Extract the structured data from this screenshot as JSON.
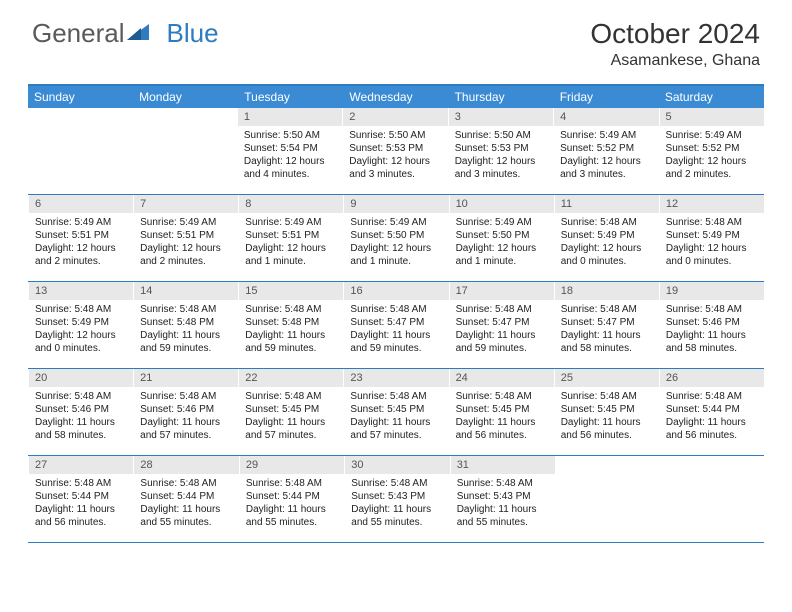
{
  "logo": {
    "part1": "General",
    "part2": "Blue"
  },
  "title": "October 2024",
  "location": "Asamankese, Ghana",
  "colors": {
    "accent": "#2e7bc0",
    "header_bg": "#3b8bd4",
    "daynum_bg": "#e8e8e8",
    "text": "#222222"
  },
  "day_headers": [
    "Sunday",
    "Monday",
    "Tuesday",
    "Wednesday",
    "Thursday",
    "Friday",
    "Saturday"
  ],
  "weeks": [
    [
      null,
      null,
      {
        "n": "1",
        "sr": "5:50 AM",
        "ss": "5:54 PM",
        "dl": "12 hours and 4 minutes."
      },
      {
        "n": "2",
        "sr": "5:50 AM",
        "ss": "5:53 PM",
        "dl": "12 hours and 3 minutes."
      },
      {
        "n": "3",
        "sr": "5:50 AM",
        "ss": "5:53 PM",
        "dl": "12 hours and 3 minutes."
      },
      {
        "n": "4",
        "sr": "5:49 AM",
        "ss": "5:52 PM",
        "dl": "12 hours and 3 minutes."
      },
      {
        "n": "5",
        "sr": "5:49 AM",
        "ss": "5:52 PM",
        "dl": "12 hours and 2 minutes."
      }
    ],
    [
      {
        "n": "6",
        "sr": "5:49 AM",
        "ss": "5:51 PM",
        "dl": "12 hours and 2 minutes."
      },
      {
        "n": "7",
        "sr": "5:49 AM",
        "ss": "5:51 PM",
        "dl": "12 hours and 2 minutes."
      },
      {
        "n": "8",
        "sr": "5:49 AM",
        "ss": "5:51 PM",
        "dl": "12 hours and 1 minute."
      },
      {
        "n": "9",
        "sr": "5:49 AM",
        "ss": "5:50 PM",
        "dl": "12 hours and 1 minute."
      },
      {
        "n": "10",
        "sr": "5:49 AM",
        "ss": "5:50 PM",
        "dl": "12 hours and 1 minute."
      },
      {
        "n": "11",
        "sr": "5:48 AM",
        "ss": "5:49 PM",
        "dl": "12 hours and 0 minutes."
      },
      {
        "n": "12",
        "sr": "5:48 AM",
        "ss": "5:49 PM",
        "dl": "12 hours and 0 minutes."
      }
    ],
    [
      {
        "n": "13",
        "sr": "5:48 AM",
        "ss": "5:49 PM",
        "dl": "12 hours and 0 minutes."
      },
      {
        "n": "14",
        "sr": "5:48 AM",
        "ss": "5:48 PM",
        "dl": "11 hours and 59 minutes."
      },
      {
        "n": "15",
        "sr": "5:48 AM",
        "ss": "5:48 PM",
        "dl": "11 hours and 59 minutes."
      },
      {
        "n": "16",
        "sr": "5:48 AM",
        "ss": "5:47 PM",
        "dl": "11 hours and 59 minutes."
      },
      {
        "n": "17",
        "sr": "5:48 AM",
        "ss": "5:47 PM",
        "dl": "11 hours and 59 minutes."
      },
      {
        "n": "18",
        "sr": "5:48 AM",
        "ss": "5:47 PM",
        "dl": "11 hours and 58 minutes."
      },
      {
        "n": "19",
        "sr": "5:48 AM",
        "ss": "5:46 PM",
        "dl": "11 hours and 58 minutes."
      }
    ],
    [
      {
        "n": "20",
        "sr": "5:48 AM",
        "ss": "5:46 PM",
        "dl": "11 hours and 58 minutes."
      },
      {
        "n": "21",
        "sr": "5:48 AM",
        "ss": "5:46 PM",
        "dl": "11 hours and 57 minutes."
      },
      {
        "n": "22",
        "sr": "5:48 AM",
        "ss": "5:45 PM",
        "dl": "11 hours and 57 minutes."
      },
      {
        "n": "23",
        "sr": "5:48 AM",
        "ss": "5:45 PM",
        "dl": "11 hours and 57 minutes."
      },
      {
        "n": "24",
        "sr": "5:48 AM",
        "ss": "5:45 PM",
        "dl": "11 hours and 56 minutes."
      },
      {
        "n": "25",
        "sr": "5:48 AM",
        "ss": "5:45 PM",
        "dl": "11 hours and 56 minutes."
      },
      {
        "n": "26",
        "sr": "5:48 AM",
        "ss": "5:44 PM",
        "dl": "11 hours and 56 minutes."
      }
    ],
    [
      {
        "n": "27",
        "sr": "5:48 AM",
        "ss": "5:44 PM",
        "dl": "11 hours and 56 minutes."
      },
      {
        "n": "28",
        "sr": "5:48 AM",
        "ss": "5:44 PM",
        "dl": "11 hours and 55 minutes."
      },
      {
        "n": "29",
        "sr": "5:48 AM",
        "ss": "5:44 PM",
        "dl": "11 hours and 55 minutes."
      },
      {
        "n": "30",
        "sr": "5:48 AM",
        "ss": "5:43 PM",
        "dl": "11 hours and 55 minutes."
      },
      {
        "n": "31",
        "sr": "5:48 AM",
        "ss": "5:43 PM",
        "dl": "11 hours and 55 minutes."
      },
      null,
      null
    ]
  ],
  "labels": {
    "sunrise": "Sunrise:",
    "sunset": "Sunset:",
    "daylight": "Daylight:"
  }
}
